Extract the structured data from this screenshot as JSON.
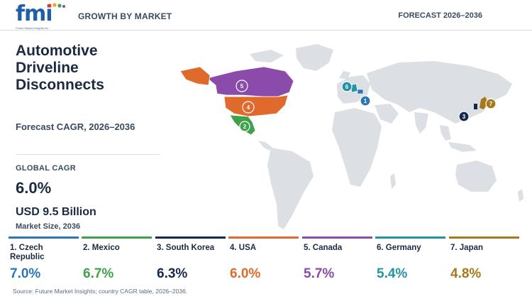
{
  "header": {
    "logo_text": "fmi",
    "logo_sub": "Future Market Insights Inc.",
    "left": "GROWTH BY MARKET",
    "right": "FORECAST 2026–2036"
  },
  "title": "Automotive Driveline Disconnects",
  "subtitle": "Forecast CAGR, 2026–2036",
  "global": {
    "label": "GLOBAL CAGR",
    "value": "6.0%",
    "size_value": "USD 9.5 Billion",
    "size_label": "Market Size, 2036"
  },
  "countries": [
    {
      "rank": "1",
      "name": "1. Czech Republic",
      "cagr": "7.0%",
      "color": "#2b77b5"
    },
    {
      "rank": "2",
      "name": "2. Mexico",
      "cagr": "6.7%",
      "color": "#3fa24a"
    },
    {
      "rank": "3",
      "name": "3. South Korea",
      "cagr": "6.3%",
      "color": "#15294d"
    },
    {
      "rank": "4",
      "name": "4. USA",
      "cagr": "6.0%",
      "color": "#e06a2c"
    },
    {
      "rank": "5",
      "name": "5. Canada",
      "cagr": "5.7%",
      "color": "#8a4bab"
    },
    {
      "rank": "6",
      "name": "6. Germany",
      "cagr": "5.4%",
      "color": "#2393a6"
    },
    {
      "rank": "7",
      "name": "7. Japan",
      "cagr": "4.8%",
      "color": "#a8781a"
    }
  ],
  "source": "Source: Future Market Insights; country CAGR table, 2026–2036."
}
